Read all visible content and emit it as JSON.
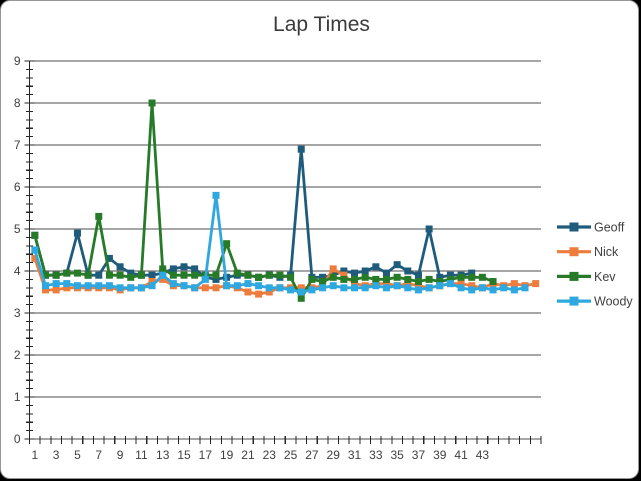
{
  "window": {
    "background_color": "#000000",
    "panel_color": "#ffffff",
    "panel_border_color": "#979797"
  },
  "chart_data": {
    "type": "line",
    "title": "Lap Times",
    "xlabel": "",
    "ylabel": "",
    "ylim": [
      0,
      9
    ],
    "y_major_step": 1,
    "y_minor_step": 0.2,
    "y_tick_labels": [
      "0",
      "1",
      "2",
      "3",
      "4",
      "5",
      "6",
      "7",
      "8",
      "9"
    ],
    "x_categories_total": 48,
    "x_tick_label_interval": 2,
    "x_tick_labels": [
      "1",
      "3",
      "5",
      "7",
      "9",
      "11",
      "13",
      "15",
      "17",
      "19",
      "21",
      "23",
      "25",
      "27",
      "29",
      "31",
      "33",
      "35",
      "37",
      "39",
      "41",
      "43"
    ],
    "grid": "horizontal-major-on",
    "grid_color": "#4d4d4d",
    "axis_color": "#262626",
    "tick_label_color": "#3f3f3f",
    "legend_position": "right",
    "legend_text_color": "#404040",
    "series": [
      {
        "name": "Geoff",
        "color": "#1F5C7C",
        "values": [
          4.85,
          3.9,
          3.9,
          3.95,
          4.9,
          3.9,
          3.9,
          4.3,
          4.1,
          3.95,
          3.9,
          3.9,
          3.95,
          4.05,
          4.1,
          4.05,
          3.85,
          3.8,
          3.85,
          3.9,
          3.9,
          3.85,
          3.9,
          3.85,
          3.9,
          6.9,
          3.85,
          3.85,
          3.9,
          4.0,
          3.95,
          4.0,
          4.1,
          3.95,
          4.15,
          4.0,
          3.9,
          5.0,
          3.85,
          3.9,
          3.9,
          3.95
        ]
      },
      {
        "name": "Nick",
        "color": "#EE7C3C",
        "values": [
          4.3,
          3.55,
          3.55,
          3.6,
          3.6,
          3.6,
          3.6,
          3.6,
          3.55,
          3.6,
          3.6,
          3.75,
          3.8,
          3.65,
          3.65,
          3.6,
          3.6,
          3.6,
          3.65,
          3.6,
          3.5,
          3.45,
          3.5,
          3.6,
          3.6,
          3.6,
          3.6,
          3.65,
          4.05,
          3.9,
          3.7,
          3.65,
          3.7,
          3.7,
          3.65,
          3.7,
          3.65,
          3.6,
          3.65,
          3.7,
          3.7,
          3.65,
          3.6,
          3.7,
          3.65,
          3.7,
          3.65,
          3.7
        ]
      },
      {
        "name": "Kev",
        "color": "#267A28",
        "values": [
          4.85,
          3.9,
          3.9,
          3.95,
          3.95,
          3.9,
          5.3,
          3.9,
          3.9,
          3.85,
          3.9,
          8.0,
          4.05,
          3.9,
          3.9,
          3.9,
          3.9,
          3.9,
          4.65,
          3.95,
          3.9,
          3.85,
          3.9,
          3.9,
          3.85,
          3.35,
          3.8,
          3.75,
          3.85,
          3.8,
          3.8,
          3.85,
          3.8,
          3.8,
          3.85,
          3.8,
          3.75,
          3.8,
          3.75,
          3.8,
          3.85,
          3.85,
          3.85,
          3.75
        ]
      },
      {
        "name": "Woody",
        "color": "#2FA8DF",
        "values": [
          4.5,
          3.65,
          3.7,
          3.7,
          3.65,
          3.65,
          3.65,
          3.65,
          3.6,
          3.6,
          3.6,
          3.65,
          3.9,
          3.7,
          3.65,
          3.6,
          3.8,
          5.8,
          3.65,
          3.65,
          3.7,
          3.65,
          3.6,
          3.6,
          3.55,
          3.5,
          3.55,
          3.6,
          3.65,
          3.6,
          3.6,
          3.6,
          3.65,
          3.6,
          3.65,
          3.6,
          3.55,
          3.6,
          3.65,
          3.7,
          3.6,
          3.55,
          3.6,
          3.55,
          3.6,
          3.55,
          3.6
        ]
      }
    ]
  }
}
